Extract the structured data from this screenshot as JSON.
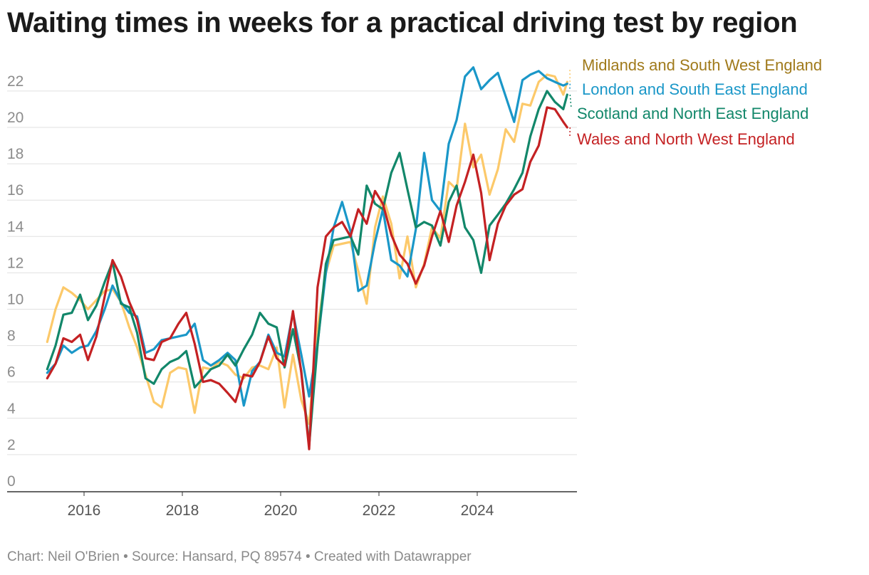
{
  "title": "Waiting times in weeks for a practical driving test by region",
  "footer": "Chart: Neil O'Brien • Source: Hansard, PQ 89574 • Created with Datawrapper",
  "chart_data": {
    "type": "line",
    "title": "Waiting times in weeks for a practical driving test by region",
    "xlabel": "",
    "ylabel": "",
    "xlim": [
      2015.0,
      2026.8
    ],
    "ylim": [
      0,
      23.3
    ],
    "grid": true,
    "legend_placement": "direct labels right",
    "y_ticks": [
      0,
      2,
      4,
      6,
      8,
      10,
      12,
      14,
      16,
      18,
      20,
      22
    ],
    "x_ticks": [
      2016,
      2018,
      2020,
      2022,
      2024
    ],
    "series": [
      {
        "name": "Midlands and South West England",
        "color": "#fcc96a",
        "label_color": "#a07a1b",
        "points": [
          [
            2015.25,
            8.2
          ],
          [
            2015.42,
            10.0
          ],
          [
            2015.58,
            11.2
          ],
          [
            2015.75,
            10.9
          ],
          [
            2015.92,
            10.5
          ],
          [
            2016.08,
            10.0
          ],
          [
            2016.25,
            10.5
          ],
          [
            2016.42,
            11.0
          ],
          [
            2016.58,
            11.1
          ],
          [
            2016.75,
            10.4
          ],
          [
            2016.92,
            9.0
          ],
          [
            2017.08,
            7.9
          ],
          [
            2017.25,
            6.4
          ],
          [
            2017.42,
            4.9
          ],
          [
            2017.58,
            4.6
          ],
          [
            2017.75,
            6.5
          ],
          [
            2017.92,
            6.8
          ],
          [
            2018.08,
            6.7
          ],
          [
            2018.25,
            4.3
          ],
          [
            2018.42,
            6.8
          ],
          [
            2018.58,
            6.7
          ],
          [
            2018.75,
            7.1
          ],
          [
            2018.92,
            6.9
          ],
          [
            2019.08,
            6.4
          ],
          [
            2019.25,
            6.2
          ],
          [
            2019.42,
            6.8
          ],
          [
            2019.58,
            6.9
          ],
          [
            2019.75,
            6.7
          ],
          [
            2019.92,
            7.9
          ],
          [
            2020.08,
            4.6
          ],
          [
            2020.25,
            7.5
          ],
          [
            2020.42,
            5.0
          ],
          [
            2020.58,
            3.7
          ],
          [
            2020.75,
            9.0
          ],
          [
            2020.92,
            12.0
          ],
          [
            2021.08,
            13.5
          ],
          [
            2021.25,
            13.6
          ],
          [
            2021.42,
            13.7
          ],
          [
            2021.58,
            12.1
          ],
          [
            2021.75,
            10.3
          ],
          [
            2021.92,
            14.5
          ],
          [
            2022.08,
            16.2
          ],
          [
            2022.25,
            14.7
          ],
          [
            2022.42,
            11.7
          ],
          [
            2022.58,
            14.0
          ],
          [
            2022.75,
            11.2
          ],
          [
            2022.92,
            12.5
          ],
          [
            2023.08,
            14.5
          ],
          [
            2023.25,
            13.9
          ],
          [
            2023.42,
            17.0
          ],
          [
            2023.58,
            16.6
          ],
          [
            2023.75,
            20.2
          ],
          [
            2023.92,
            17.8
          ],
          [
            2024.08,
            18.5
          ],
          [
            2024.25,
            16.3
          ],
          [
            2024.42,
            17.7
          ],
          [
            2024.58,
            19.9
          ],
          [
            2024.75,
            19.2
          ],
          [
            2024.92,
            21.3
          ],
          [
            2025.08,
            21.2
          ],
          [
            2025.25,
            22.5
          ],
          [
            2025.42,
            22.9
          ],
          [
            2025.58,
            22.8
          ],
          [
            2025.75,
            21.8
          ],
          [
            2025.83,
            22.5
          ]
        ]
      },
      {
        "name": "London and South East England",
        "color": "#1a97c8",
        "label_color": "#1a97c8",
        "points": [
          [
            2015.25,
            6.5
          ],
          [
            2015.42,
            7.0
          ],
          [
            2015.58,
            8.0
          ],
          [
            2015.75,
            7.6
          ],
          [
            2015.92,
            7.9
          ],
          [
            2016.08,
            8.0
          ],
          [
            2016.25,
            8.8
          ],
          [
            2016.42,
            10.0
          ],
          [
            2016.58,
            11.3
          ],
          [
            2016.75,
            10.4
          ],
          [
            2016.92,
            9.8
          ],
          [
            2017.08,
            9.6
          ],
          [
            2017.25,
            7.6
          ],
          [
            2017.42,
            7.8
          ],
          [
            2017.58,
            8.3
          ],
          [
            2017.75,
            8.4
          ],
          [
            2017.92,
            8.5
          ],
          [
            2018.08,
            8.6
          ],
          [
            2018.25,
            9.2
          ],
          [
            2018.42,
            7.2
          ],
          [
            2018.58,
            6.9
          ],
          [
            2018.75,
            7.2
          ],
          [
            2018.92,
            7.6
          ],
          [
            2019.08,
            7.2
          ],
          [
            2019.25,
            4.7
          ],
          [
            2019.42,
            6.6
          ],
          [
            2019.58,
            7.1
          ],
          [
            2019.75,
            8.6
          ],
          [
            2019.92,
            7.6
          ],
          [
            2020.08,
            7.4
          ],
          [
            2020.25,
            9.8
          ],
          [
            2020.42,
            7.5
          ],
          [
            2020.58,
            5.2
          ],
          [
            2020.75,
            8.1
          ],
          [
            2020.92,
            12.0
          ],
          [
            2021.08,
            14.5
          ],
          [
            2021.25,
            15.9
          ],
          [
            2021.42,
            14.3
          ],
          [
            2021.58,
            11.0
          ],
          [
            2021.75,
            11.3
          ],
          [
            2021.92,
            13.7
          ],
          [
            2022.08,
            15.5
          ],
          [
            2022.25,
            12.7
          ],
          [
            2022.42,
            12.4
          ],
          [
            2022.58,
            11.8
          ],
          [
            2022.75,
            14.4
          ],
          [
            2022.92,
            18.6
          ],
          [
            2023.08,
            16.0
          ],
          [
            2023.25,
            15.4
          ],
          [
            2023.42,
            19.1
          ],
          [
            2023.58,
            20.4
          ],
          [
            2023.75,
            22.8
          ],
          [
            2023.92,
            23.3
          ],
          [
            2024.08,
            22.1
          ],
          [
            2024.25,
            22.6
          ],
          [
            2024.42,
            23.0
          ],
          [
            2024.58,
            21.7
          ],
          [
            2024.75,
            20.3
          ],
          [
            2024.92,
            22.6
          ],
          [
            2025.08,
            22.9
          ],
          [
            2025.25,
            23.1
          ],
          [
            2025.42,
            22.7
          ],
          [
            2025.58,
            22.5
          ],
          [
            2025.75,
            22.3
          ],
          [
            2025.83,
            22.4
          ]
        ]
      },
      {
        "name": "Scotland and North East England",
        "color": "#12876a",
        "label_color": "#12876a",
        "points": [
          [
            2015.25,
            6.7
          ],
          [
            2015.42,
            8.0
          ],
          [
            2015.58,
            9.7
          ],
          [
            2015.75,
            9.8
          ],
          [
            2015.92,
            10.8
          ],
          [
            2016.08,
            9.4
          ],
          [
            2016.25,
            10.2
          ],
          [
            2016.42,
            11.5
          ],
          [
            2016.58,
            12.6
          ],
          [
            2016.75,
            10.3
          ],
          [
            2016.92,
            10.1
          ],
          [
            2017.08,
            8.7
          ],
          [
            2017.25,
            6.2
          ],
          [
            2017.42,
            5.9
          ],
          [
            2017.58,
            6.7
          ],
          [
            2017.75,
            7.1
          ],
          [
            2017.92,
            7.3
          ],
          [
            2018.08,
            7.7
          ],
          [
            2018.25,
            5.7
          ],
          [
            2018.42,
            6.2
          ],
          [
            2018.58,
            6.7
          ],
          [
            2018.75,
            6.9
          ],
          [
            2018.92,
            7.5
          ],
          [
            2019.08,
            6.9
          ],
          [
            2019.25,
            7.8
          ],
          [
            2019.42,
            8.6
          ],
          [
            2019.58,
            9.8
          ],
          [
            2019.75,
            9.2
          ],
          [
            2019.92,
            9.0
          ],
          [
            2020.08,
            6.8
          ],
          [
            2020.25,
            8.9
          ],
          [
            2020.42,
            6.6
          ],
          [
            2020.58,
            2.5
          ],
          [
            2020.75,
            8.0
          ],
          [
            2020.92,
            12.5
          ],
          [
            2021.08,
            13.8
          ],
          [
            2021.25,
            13.9
          ],
          [
            2021.42,
            14.0
          ],
          [
            2021.58,
            13.0
          ],
          [
            2021.75,
            16.8
          ],
          [
            2021.92,
            15.8
          ],
          [
            2022.08,
            15.5
          ],
          [
            2022.25,
            17.5
          ],
          [
            2022.42,
            18.6
          ],
          [
            2022.58,
            16.6
          ],
          [
            2022.75,
            14.5
          ],
          [
            2022.92,
            14.8
          ],
          [
            2023.08,
            14.6
          ],
          [
            2023.25,
            13.5
          ],
          [
            2023.42,
            15.9
          ],
          [
            2023.58,
            16.8
          ],
          [
            2023.75,
            14.5
          ],
          [
            2023.92,
            13.8
          ],
          [
            2024.08,
            12.0
          ],
          [
            2024.25,
            14.6
          ],
          [
            2024.42,
            15.2
          ],
          [
            2024.58,
            15.8
          ],
          [
            2024.75,
            16.6
          ],
          [
            2024.92,
            17.5
          ],
          [
            2025.08,
            19.5
          ],
          [
            2025.25,
            21.0
          ],
          [
            2025.42,
            22.0
          ],
          [
            2025.58,
            21.4
          ],
          [
            2025.75,
            21.0
          ],
          [
            2025.83,
            21.8
          ]
        ]
      },
      {
        "name": "Wales and North West England",
        "color": "#c42123",
        "label_color": "#c42123",
        "points": [
          [
            2015.25,
            6.2
          ],
          [
            2015.42,
            7.0
          ],
          [
            2015.58,
            8.4
          ],
          [
            2015.75,
            8.2
          ],
          [
            2015.92,
            8.6
          ],
          [
            2016.08,
            7.2
          ],
          [
            2016.25,
            8.5
          ],
          [
            2016.42,
            10.7
          ],
          [
            2016.58,
            12.7
          ],
          [
            2016.75,
            11.8
          ],
          [
            2016.92,
            10.4
          ],
          [
            2017.08,
            9.4
          ],
          [
            2017.25,
            7.3
          ],
          [
            2017.42,
            7.2
          ],
          [
            2017.58,
            8.2
          ],
          [
            2017.75,
            8.4
          ],
          [
            2017.92,
            9.2
          ],
          [
            2018.08,
            9.8
          ],
          [
            2018.25,
            8.1
          ],
          [
            2018.42,
            6.0
          ],
          [
            2018.58,
            6.1
          ],
          [
            2018.75,
            5.9
          ],
          [
            2018.92,
            5.4
          ],
          [
            2019.08,
            4.9
          ],
          [
            2019.25,
            6.4
          ],
          [
            2019.42,
            6.3
          ],
          [
            2019.58,
            7.1
          ],
          [
            2019.75,
            8.5
          ],
          [
            2019.92,
            7.3
          ],
          [
            2020.08,
            6.9
          ],
          [
            2020.25,
            9.9
          ],
          [
            2020.42,
            6.5
          ],
          [
            2020.58,
            2.3
          ],
          [
            2020.75,
            11.2
          ],
          [
            2020.92,
            14.0
          ],
          [
            2021.08,
            14.5
          ],
          [
            2021.25,
            14.8
          ],
          [
            2021.42,
            14.0
          ],
          [
            2021.58,
            15.5
          ],
          [
            2021.75,
            14.7
          ],
          [
            2021.92,
            16.5
          ],
          [
            2022.08,
            15.8
          ],
          [
            2022.25,
            14.1
          ],
          [
            2022.42,
            13.0
          ],
          [
            2022.58,
            12.5
          ],
          [
            2022.75,
            11.4
          ],
          [
            2022.92,
            12.4
          ],
          [
            2023.08,
            14.0
          ],
          [
            2023.25,
            15.4
          ],
          [
            2023.42,
            13.7
          ],
          [
            2023.58,
            15.7
          ],
          [
            2023.75,
            17.0
          ],
          [
            2023.92,
            18.5
          ],
          [
            2024.08,
            16.4
          ],
          [
            2024.25,
            12.7
          ],
          [
            2024.42,
            14.7
          ],
          [
            2024.58,
            15.7
          ],
          [
            2024.75,
            16.3
          ],
          [
            2024.92,
            16.6
          ],
          [
            2025.08,
            18.1
          ],
          [
            2025.25,
            19.0
          ],
          [
            2025.42,
            21.1
          ],
          [
            2025.58,
            21.0
          ],
          [
            2025.75,
            20.3
          ],
          [
            2025.83,
            20.0
          ]
        ]
      }
    ]
  }
}
